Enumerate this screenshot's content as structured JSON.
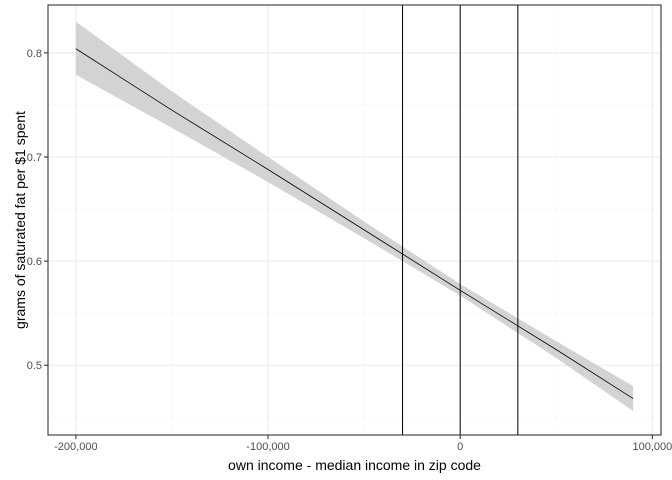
{
  "chart_data": {
    "type": "line",
    "title": "",
    "xlabel": "own income - median income in zip code",
    "ylabel": "grams of saturated fat per $1 spent",
    "xlim": [
      -214500,
      104500
    ],
    "ylim": [
      0.433,
      0.846
    ],
    "x_ticks": [
      -200000,
      -100000,
      0,
      100000
    ],
    "x_tick_labels": [
      "-200,000",
      "-100,000",
      "0",
      "100,000"
    ],
    "y_ticks": [
      0.5,
      0.6,
      0.7,
      0.8
    ],
    "y_tick_labels": [
      "0.5",
      "0.6",
      "0.7",
      "0.8"
    ],
    "grid": true,
    "legend": "none",
    "series": [
      {
        "x": [
          -200000,
          -150000,
          -100000,
          -50000,
          0,
          50000,
          90000
        ],
        "y": [
          0.804,
          0.745,
          0.688,
          0.63,
          0.572,
          0.515,
          0.468
        ],
        "ci_lower": [
          0.779,
          0.728,
          0.676,
          0.622,
          0.567,
          0.507,
          0.456
        ],
        "ci_upper": [
          0.83,
          0.763,
          0.7,
          0.638,
          0.578,
          0.523,
          0.48
        ]
      }
    ],
    "vlines": [
      -30000,
      0,
      30000
    ],
    "colors": {
      "line": "#000000",
      "ribbon": "#d3d3d3",
      "grid_major": "#ebebeb",
      "grid_minor": "#f5f5f5",
      "panel_border": "#333333",
      "tick_text": "#4d4d4d"
    }
  }
}
